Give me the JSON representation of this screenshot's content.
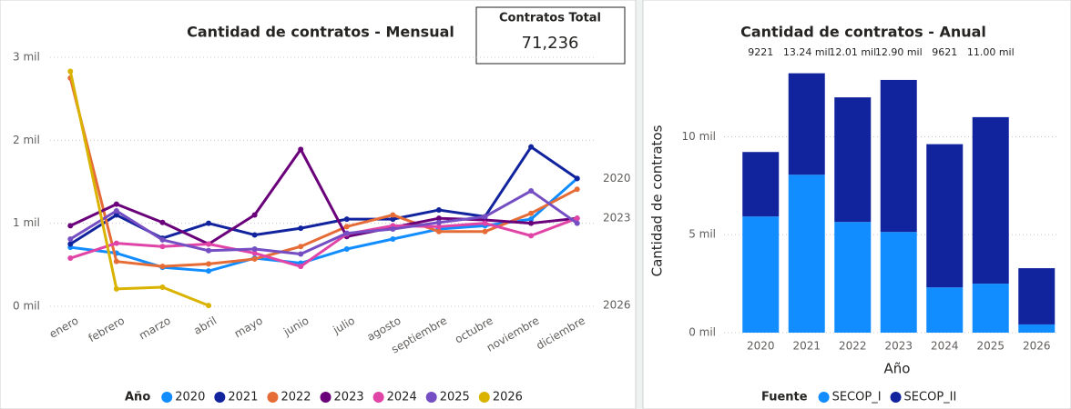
{
  "kpi": {
    "title": "Contratos Total",
    "value": "71,236"
  },
  "chart_data": [
    {
      "type": "line",
      "title": "Cantidad de contratos - Mensual",
      "categories": [
        "enero",
        "febrero",
        "marzo",
        "abril",
        "mayo",
        "junio",
        "julio",
        "agosto",
        "septiembre",
        "octubre",
        "noviembre",
        "diciembre"
      ],
      "series": [
        {
          "name": "2020",
          "color": "#118dff",
          "values": [
            710,
            640,
            470,
            425,
            580,
            520,
            690,
            810,
            930,
            970,
            1050,
            1540
          ]
        },
        {
          "name": "2021",
          "color": "#12239e",
          "values": [
            750,
            1100,
            820,
            1000,
            860,
            940,
            1050,
            1050,
            1160,
            1080,
            1920,
            1540
          ]
        },
        {
          "name": "2022",
          "color": "#e66c37",
          "values": [
            2750,
            540,
            480,
            510,
            570,
            720,
            960,
            1100,
            900,
            900,
            1120,
            1410
          ]
        },
        {
          "name": "2023",
          "color": "#6b007b",
          "values": [
            970,
            1230,
            1010,
            750,
            1100,
            1890,
            840,
            950,
            1060,
            1040,
            1000,
            1060
          ]
        },
        {
          "name": "2024",
          "color": "#e044a7",
          "values": [
            580,
            760,
            720,
            750,
            640,
            480,
            870,
            970,
            960,
            1000,
            850,
            1060
          ]
        },
        {
          "name": "2025",
          "color": "#744ec2",
          "values": [
            810,
            1150,
            800,
            670,
            690,
            630,
            880,
            930,
            1010,
            1080,
            1390,
            1000
          ]
        },
        {
          "name": "2026",
          "color": "#d9b300",
          "values": [
            2830,
            210,
            230,
            10,
            null,
            null,
            null,
            null,
            null,
            null,
            null,
            null
          ]
        }
      ],
      "ylim": [
        0,
        3000
      ],
      "yticks": [
        {
          "value": 0,
          "label": "0 mil"
        },
        {
          "value": 1000,
          "label": "1 mil"
        },
        {
          "value": 2000,
          "label": "2 mil"
        },
        {
          "value": 3000,
          "label": "3 mil"
        }
      ],
      "grid": true,
      "legend_title": "Año",
      "annotations": [
        "2020",
        "2023",
        "2026"
      ]
    },
    {
      "type": "bar",
      "stacked": true,
      "title": "Cantidad de contratos - Anual",
      "categories": [
        "2020",
        "2021",
        "2022",
        "2023",
        "2024",
        "2025",
        "2026"
      ],
      "series": [
        {
          "name": "SECOP_I",
          "color": "#118dff",
          "values": [
            5930,
            8060,
            5650,
            5140,
            2310,
            2500,
            420
          ]
        },
        {
          "name": "SECOP_II",
          "color": "#12239e",
          "values": [
            3291,
            5180,
            6360,
            7760,
            7311,
            8500,
            2870
          ]
        }
      ],
      "totals": [
        9221,
        13240,
        12010,
        12900,
        9621,
        11000,
        null
      ],
      "total_labels": [
        "9221",
        "13.24 mil",
        "12.01 mil",
        "12.90 mil",
        "9621",
        "11.00 mil",
        null
      ],
      "ylim": [
        0,
        13500
      ],
      "yticks": [
        {
          "value": 0,
          "label": "0 mil"
        },
        {
          "value": 5000,
          "label": "5 mil"
        },
        {
          "value": 10000,
          "label": "10 mil"
        }
      ],
      "grid": true,
      "x_label": "Año",
      "y_label": "Cantidad de contratos",
      "legend_title": "Fuente"
    }
  ]
}
